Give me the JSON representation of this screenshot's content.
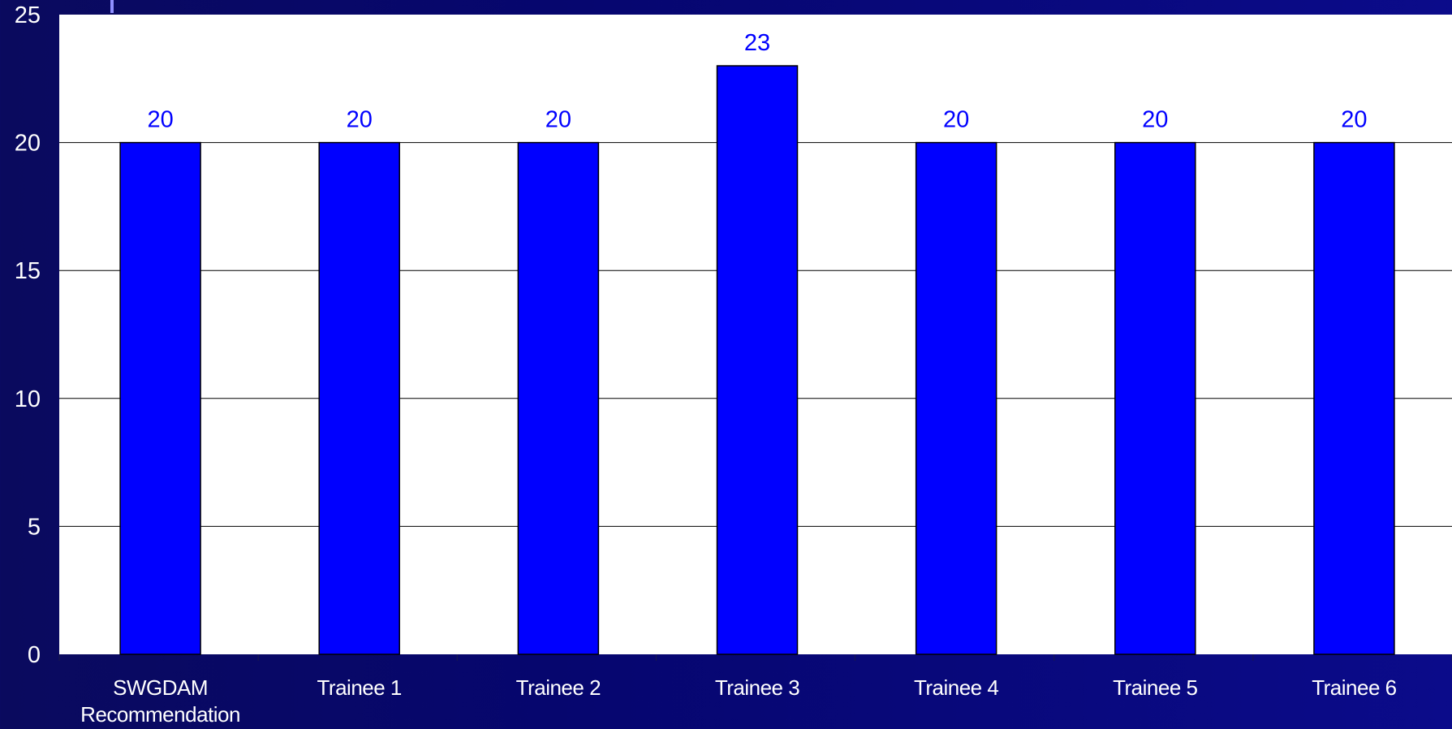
{
  "colors": {
    "background": "#06066f",
    "plot_area": "#ffffff",
    "bar_fill": "#0000ff",
    "bar_stroke": "#000000",
    "data_label": "#0000ff",
    "axis_text": "#ffffff",
    "gridline": "#000000"
  },
  "chart_data": {
    "type": "bar",
    "categories": [
      "SWGDAM Recommendation",
      "Trainee 1",
      "Trainee 2",
      "Trainee 3",
      "Trainee 4",
      "Trainee 5",
      "Trainee 6"
    ],
    "category_lines": [
      [
        "SWGDAM",
        "Recommendation"
      ],
      [
        "Trainee 1"
      ],
      [
        "Trainee 2"
      ],
      [
        "Trainee 3"
      ],
      [
        "Trainee 4"
      ],
      [
        "Trainee 5"
      ],
      [
        "Trainee 6"
      ]
    ],
    "values": [
      20,
      20,
      20,
      23,
      20,
      20,
      20
    ],
    "data_labels": [
      "20",
      "20",
      "20",
      "23",
      "20",
      "20",
      "20"
    ],
    "ylim": [
      0,
      25
    ],
    "yticks": [
      0,
      5,
      10,
      15,
      20,
      25
    ],
    "title": "",
    "xlabel": "",
    "ylabel": "",
    "grid": true,
    "legend": "none"
  }
}
